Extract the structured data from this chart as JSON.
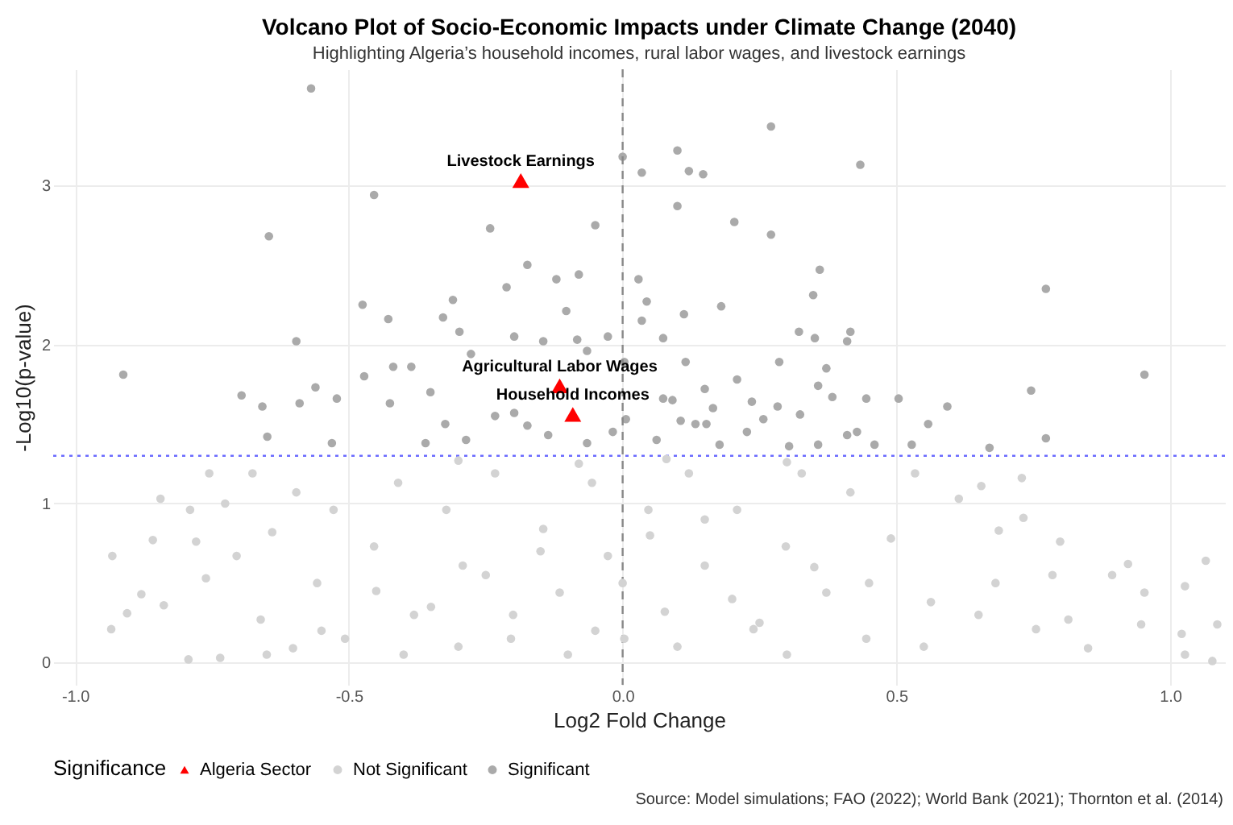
{
  "chart_data": {
    "type": "scatter",
    "title": "Volcano Plot of Socio-Economic Impacts under Climate Change (2040)",
    "subtitle": "Highlighting Algeria’s household incomes, rural labor wages, and livestock earnings",
    "xlabel": "Log2 Fold Change",
    "ylabel": "-Log10(p-value)",
    "legend_title": "Significance",
    "legend": "bottom",
    "grid": true,
    "marker": "circle",
    "xlim": [
      -1.04,
      1.1
    ],
    "ylim": [
      -0.14,
      3.73
    ],
    "xticks": [
      {
        "value": -1,
        "label": "-1.0"
      },
      {
        "value": -0.5,
        "label": "-0.5"
      },
      {
        "value": 0,
        "label": "0.0"
      },
      {
        "value": 0.5,
        "label": "0.5"
      },
      {
        "value": 1,
        "label": "1.0"
      }
    ],
    "yticks": [
      0,
      1,
      2,
      3
    ],
    "ref_lines": [
      {
        "axis": "y",
        "value": 1.3,
        "color": "#6b6bff",
        "line_style": "dotted"
      },
      {
        "axis": "x",
        "value": 0,
        "color": "#888888",
        "line_style": "dashed"
      }
    ],
    "series": [
      {
        "name": "Algeria Sector",
        "color": "#ff0000",
        "marker": "triangle",
        "x": [
          -0.186,
          -0.115,
          -0.091
        ],
        "values": [
          3.03,
          1.74,
          1.56
        ]
      },
      {
        "name": "Not Significant",
        "color": "#d3d3d3",
        "x": [
          -0.932,
          -0.934,
          -0.905,
          -0.879,
          -0.858,
          -0.844,
          -0.838,
          -0.79,
          -0.793,
          -0.779,
          -0.755,
          -0.726,
          -0.735,
          -0.761,
          -0.705,
          -0.676,
          -0.661,
          -0.64,
          -0.602,
          -0.596,
          -0.558,
          -0.528,
          -0.507,
          -0.454,
          -0.41,
          -0.381,
          -0.322,
          -0.292,
          -0.233,
          -0.204,
          -0.145,
          -0.115,
          -0.056,
          -0.027,
          0.003,
          0.047,
          0.077,
          0.121,
          0.15,
          0.209,
          0.239,
          0.298,
          0.327,
          0.372,
          0.416,
          0.445,
          0.49,
          0.534,
          0.563,
          0.614,
          0.655,
          0.687,
          0.681,
          0.732,
          0.729,
          0.755,
          0.785,
          0.799,
          0.814,
          0.85,
          0.894,
          0.923,
          0.947,
          0.953,
          1.021,
          1.027,
          1.027,
          1.065,
          1.086,
          1.077,
          -0.4,
          -0.3,
          -0.2,
          -0.1,
          0,
          0.1,
          0.2,
          0.3,
          -0.15,
          0.05,
          -0.05,
          0.15,
          -0.25,
          0.25,
          0.35,
          -0.35,
          -0.45,
          0.45,
          -0.55,
          0.55,
          -0.65,
          0.65,
          -0.08,
          0.08,
          -0.3,
          0.3
        ],
        "values": [
          0.67,
          0.21,
          0.31,
          0.43,
          0.77,
          1.03,
          0.36,
          0.96,
          0.02,
          0.76,
          1.19,
          1.0,
          0.03,
          0.53,
          0.67,
          1.19,
          0.27,
          0.82,
          0.09,
          1.07,
          0.5,
          0.96,
          0.15,
          0.73,
          1.13,
          0.3,
          0.96,
          0.61,
          1.19,
          0.15,
          0.84,
          0.44,
          1.13,
          0.67,
          0.15,
          0.96,
          0.32,
          1.19,
          0.61,
          0.96,
          0.21,
          0.73,
          1.19,
          0.44,
          1.07,
          0.15,
          0.78,
          1.19,
          0.38,
          1.03,
          1.11,
          0.83,
          0.5,
          0.91,
          1.16,
          0.21,
          0.55,
          0.76,
          0.27,
          0.09,
          0.55,
          0.62,
          0.24,
          0.44,
          0.18,
          0.48,
          0.05,
          0.64,
          0.24,
          0.01,
          0.05,
          0.1,
          0.3,
          0.05,
          0.5,
          0.1,
          0.4,
          0.05,
          0.7,
          0.8,
          0.2,
          0.9,
          0.55,
          0.25,
          0.6,
          0.35,
          0.45,
          0.5,
          0.2,
          0.1,
          0.05,
          0.3,
          1.25,
          1.28,
          1.27,
          1.26
        ]
      },
      {
        "name": "Significant",
        "color": "#aaaaaa",
        "x": [
          -0.569,
          -0.454,
          -0.646,
          -0.242,
          -0.174,
          -0.212,
          -0.121,
          -0.08,
          -0.05,
          0.0,
          -0.31,
          -0.475,
          -0.428,
          -0.328,
          -0.596,
          -0.912,
          -0.696,
          -0.658,
          -0.649,
          -0.561,
          -0.59,
          -0.522,
          -0.472,
          -0.419,
          -0.386,
          -0.425,
          -0.351,
          -0.298,
          -0.277,
          -0.198,
          -0.145,
          -0.103,
          -0.083,
          -0.065,
          -0.027,
          -0.531,
          -0.36,
          -0.324,
          -0.286,
          -0.233,
          -0.198,
          -0.136,
          -0.065,
          -0.018,
          -0.174,
          0.035,
          0.1,
          0.121,
          0.147,
          0.1,
          0.271,
          0.434,
          0.204,
          0.271,
          0.36,
          0.348,
          0.773,
          0.029,
          0.044,
          0.035,
          0.112,
          0.18,
          0.074,
          0.322,
          0.351,
          0.41,
          0.416,
          0.286,
          0.372,
          0.357,
          0.115,
          0.209,
          0.953,
          0.746,
          0.773,
          0.67,
          0.593,
          0.504,
          0.558,
          0.445,
          0.383,
          0.324,
          0.283,
          0.236,
          0.165,
          0.15,
          0.091,
          0.074,
          0.106,
          0.133,
          0.227,
          0.257,
          0.153,
          0.41,
          0.428,
          0.46,
          0.528,
          0.357,
          0.304,
          0.177,
          0.062,
          0.003,
          0.006
        ],
        "values": [
          3.61,
          2.94,
          2.68,
          2.73,
          2.5,
          2.36,
          2.41,
          2.44,
          2.75,
          3.18,
          2.28,
          2.25,
          2.16,
          2.17,
          2.02,
          1.81,
          1.68,
          1.61,
          1.42,
          1.73,
          1.63,
          1.66,
          1.8,
          1.86,
          1.86,
          1.63,
          1.7,
          2.08,
          1.94,
          2.05,
          2.02,
          2.21,
          2.03,
          1.96,
          2.05,
          1.38,
          1.38,
          1.5,
          1.4,
          1.55,
          1.57,
          1.43,
          1.38,
          1.45,
          1.49,
          3.08,
          3.22,
          3.09,
          3.07,
          2.87,
          3.37,
          3.13,
          2.77,
          2.69,
          2.47,
          2.31,
          2.35,
          2.41,
          2.27,
          2.15,
          2.19,
          2.24,
          2.04,
          2.08,
          2.04,
          2.02,
          2.08,
          1.89,
          1.85,
          1.74,
          1.89,
          1.78,
          1.81,
          1.71,
          1.41,
          1.35,
          1.61,
          1.66,
          1.5,
          1.66,
          1.67,
          1.56,
          1.61,
          1.64,
          1.6,
          1.72,
          1.65,
          1.66,
          1.52,
          1.5,
          1.45,
          1.53,
          1.5,
          1.43,
          1.45,
          1.37,
          1.37,
          1.37,
          1.36,
          1.37,
          1.4,
          1.89,
          1.53
        ]
      }
    ],
    "annotations": [
      {
        "text": "Livestock Earnings",
        "x": -0.186,
        "y": 3.03
      },
      {
        "text": "Agricultural Labor Wages",
        "x": -0.115,
        "y": 1.74
      },
      {
        "text": "Household Incomes",
        "x": -0.091,
        "y": 1.56
      },
      "Source: Model simulations; FAO (2022); World Bank (2021); Thornton et al. (2014)"
    ]
  }
}
